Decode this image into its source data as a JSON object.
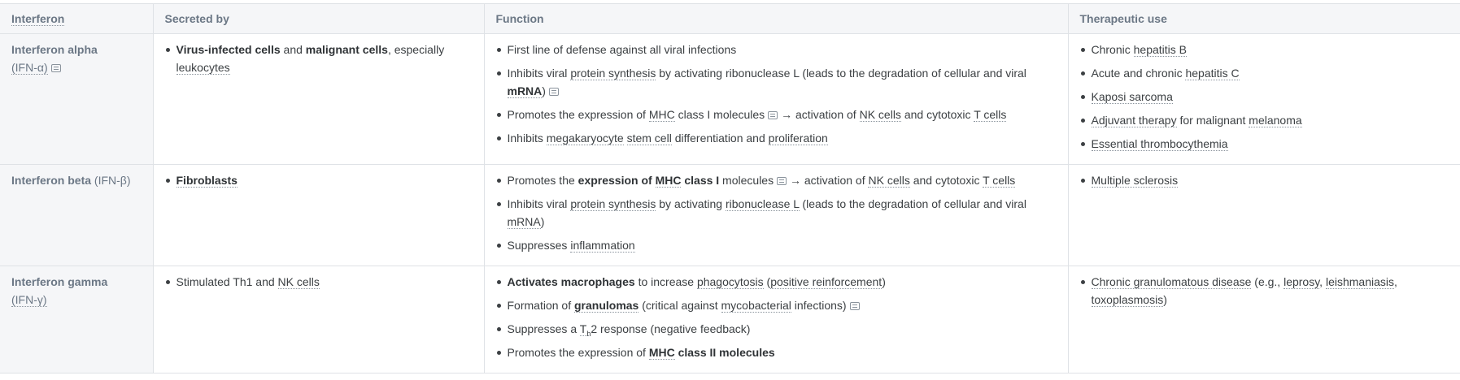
{
  "headers": {
    "interferon": "Interferon",
    "secreted_by": "Secreted by",
    "function": "Function",
    "therapeutic_use": "Therapeutic use"
  },
  "rows": [
    {
      "name": "Interferon alpha",
      "abbr": "(IFN-α)",
      "secreted": {
        "b1": "Virus-infected cells",
        "t1": " and ",
        "b2": "malignant cells",
        "t2": ", especially ",
        "l1": "leukocytes"
      },
      "functions": {
        "f1": "First line of defense against all viral infections",
        "f2a": "Inhibits viral ",
        "f2b": "protein synthesis",
        "f2c": " by activating ribonuclease L (leads to the degradation of cellular and viral ",
        "f2d": "mRNA",
        "f2e": ")",
        "f3a": "Promotes the expression of ",
        "f3b": "MHC",
        "f3c": " class I molecules",
        "f3d": " → activation of ",
        "f3e": "NK cells",
        "f3f": " and cytotoxic ",
        "f3g": "T cells",
        "f4a": "Inhibits ",
        "f4b": "megakaryocyte",
        "f4c": " ",
        "f4d": "stem cell",
        "f4e": " differentiation and ",
        "f4f": "proliferation"
      },
      "uses": {
        "u1a": "Chronic ",
        "u1b": "hepatitis B",
        "u2a": "Acute and chronic ",
        "u2b": "hepatitis C",
        "u3": "Kaposi sarcoma",
        "u4a": "Adjuvant therapy",
        "u4b": " for malignant ",
        "u4c": "melanoma",
        "u5": "Essential thrombocythemia"
      }
    },
    {
      "name": "Interferon beta",
      "abbr": "(IFN-β)",
      "secreted": {
        "b1": "Fibroblasts"
      },
      "functions": {
        "f1a": "Promotes the ",
        "f1b": "expression of ",
        "f1c": "MHC",
        "f1d": " class I",
        "f1e": " molecules",
        "f1f": " → activation of ",
        "f1g": "NK cells",
        "f1h": " and cytotoxic ",
        "f1i": "T cells",
        "f2a": "Inhibits viral ",
        "f2b": "protein synthesis",
        "f2c": " by activating ",
        "f2d": "ribonuclease L",
        "f2e": " (leads to the degradation of cellular and viral ",
        "f2f": "mRNA",
        "f2g": ")",
        "f3a": "Suppresses ",
        "f3b": "inflammation"
      },
      "uses": {
        "u1": "Multiple sclerosis"
      }
    },
    {
      "name": "Interferon gamma",
      "abbr": "(IFN-γ)",
      "secreted": {
        "t1": "Stimulated Th1 and ",
        "l1": "NK cells"
      },
      "functions": {
        "f1a": "Activates macrophages",
        "f1b": " to increase ",
        "f1c": "phagocytosis",
        "f1d": " (",
        "f1e": "positive reinforcement",
        "f1f": ")",
        "f2a": "Formation of ",
        "f2b": "granulomas",
        "f2c": " (critical against ",
        "f2d": "mycobacterial",
        "f2e": " infections)",
        "f3a": "Suppresses a ",
        "f3b": "T",
        "f3c": "h",
        "f3d": "2 response (negative feedback)",
        "f4a": "Promotes the expression of ",
        "f4b": "MHC",
        "f4c": " class II molecules"
      },
      "uses": {
        "u1a": "Chronic granulomatous disease",
        "u1b": " (e.g., ",
        "u1c": "leprosy",
        "u1d": ", ",
        "u1e": "leishmaniasis",
        "u1f": ", ",
        "u1g": "toxoplasmosis",
        "u1h": ")"
      }
    }
  ]
}
